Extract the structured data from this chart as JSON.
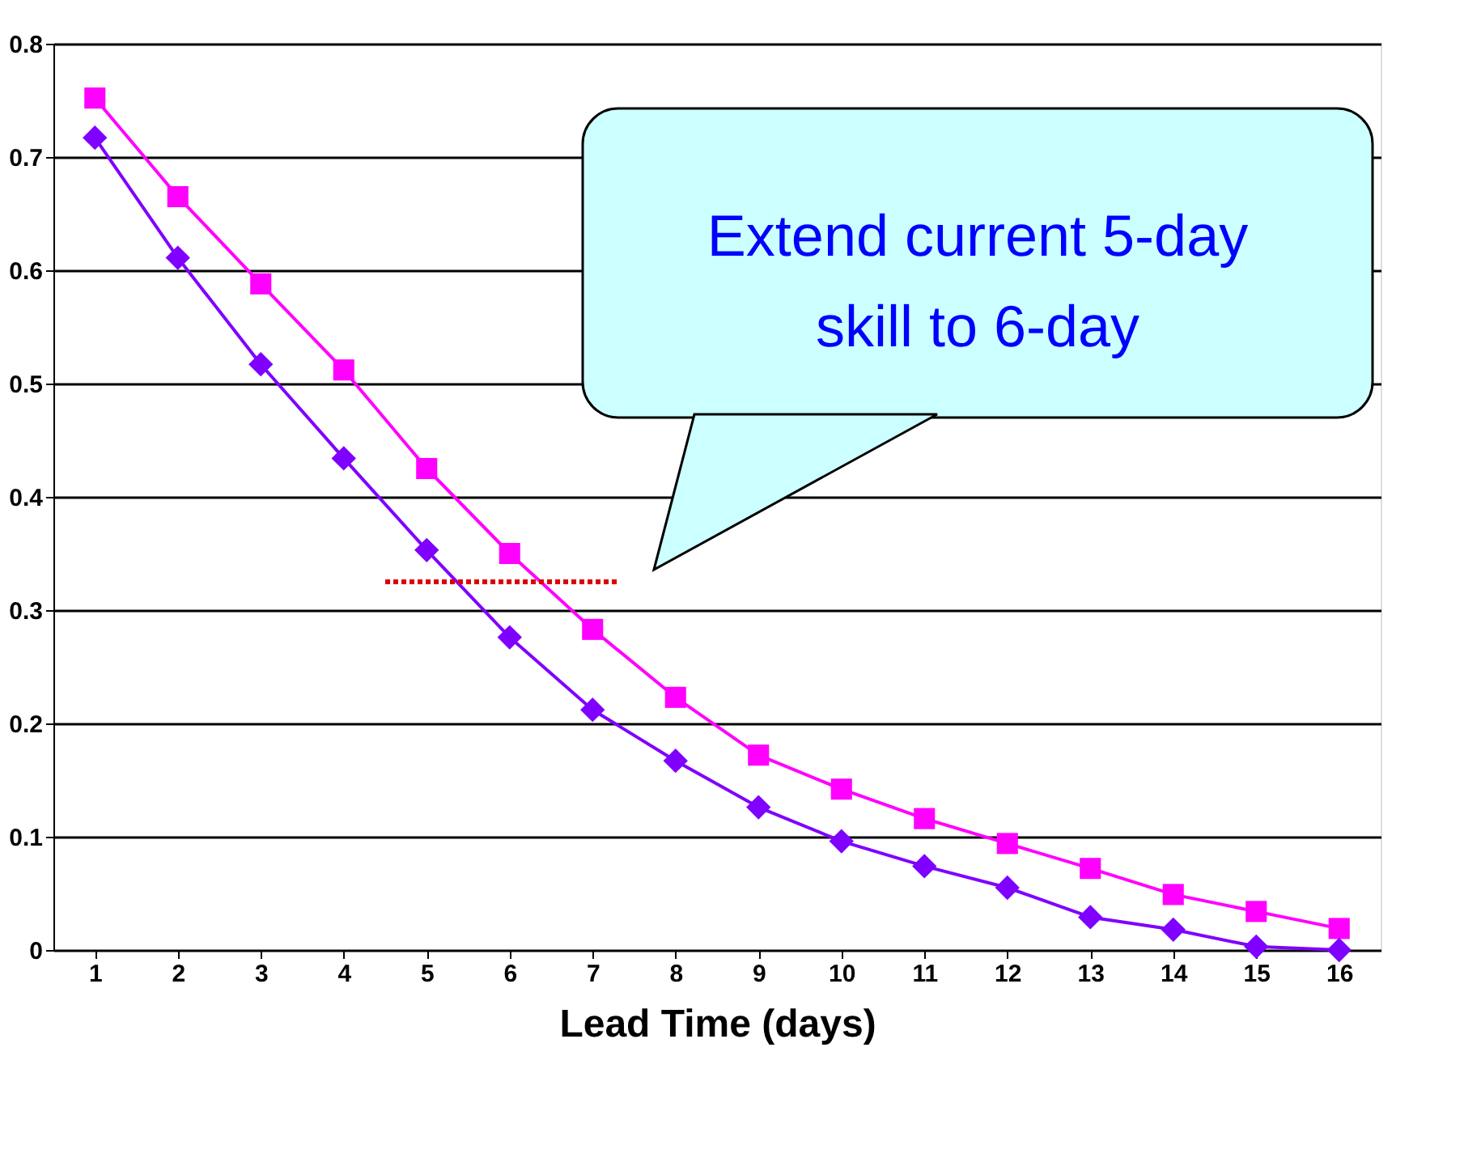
{
  "chart_data": {
    "type": "line",
    "xlabel": "Lead Time (days)",
    "x": [
      1,
      2,
      3,
      4,
      5,
      6,
      7,
      8,
      9,
      10,
      11,
      12,
      13,
      14,
      15,
      16
    ],
    "xlim": [
      0.5,
      16.5
    ],
    "xticks": [
      1,
      2,
      3,
      4,
      5,
      6,
      7,
      8,
      9,
      10,
      11,
      12,
      13,
      14,
      15,
      16
    ],
    "ylim": [
      0,
      0.8
    ],
    "yticks": [
      0,
      0.1,
      0.2,
      0.3,
      0.4,
      0.5,
      0.6,
      0.7,
      0.8
    ],
    "grid": "y",
    "line_style": "solid",
    "series": [
      {
        "color": "#ff00ff",
        "marker": "square",
        "values": [
          0.752,
          0.665,
          0.588,
          0.512,
          0.425,
          0.35,
          0.283,
          0.223,
          0.172,
          0.142,
          0.116,
          0.094,
          0.072,
          0.049,
          0.034,
          0.019
        ]
      },
      {
        "color": "#7f00ff",
        "marker": "diamond",
        "values": [
          0.717,
          0.611,
          0.517,
          0.434,
          0.353,
          0.276,
          0.212,
          0.167,
          0.126,
          0.096,
          0.074,
          0.055,
          0.029,
          0.018,
          0.003,
          0
        ]
      },
      {
        "color": "#dd0000",
        "marker": "none",
        "line_style": "dotted",
        "x": [
          4.5,
          7.3
        ],
        "values": [
          0.325,
          0.325
        ]
      }
    ],
    "annotations": [
      "Extend current 5-day skill to 6-day"
    ]
  }
}
